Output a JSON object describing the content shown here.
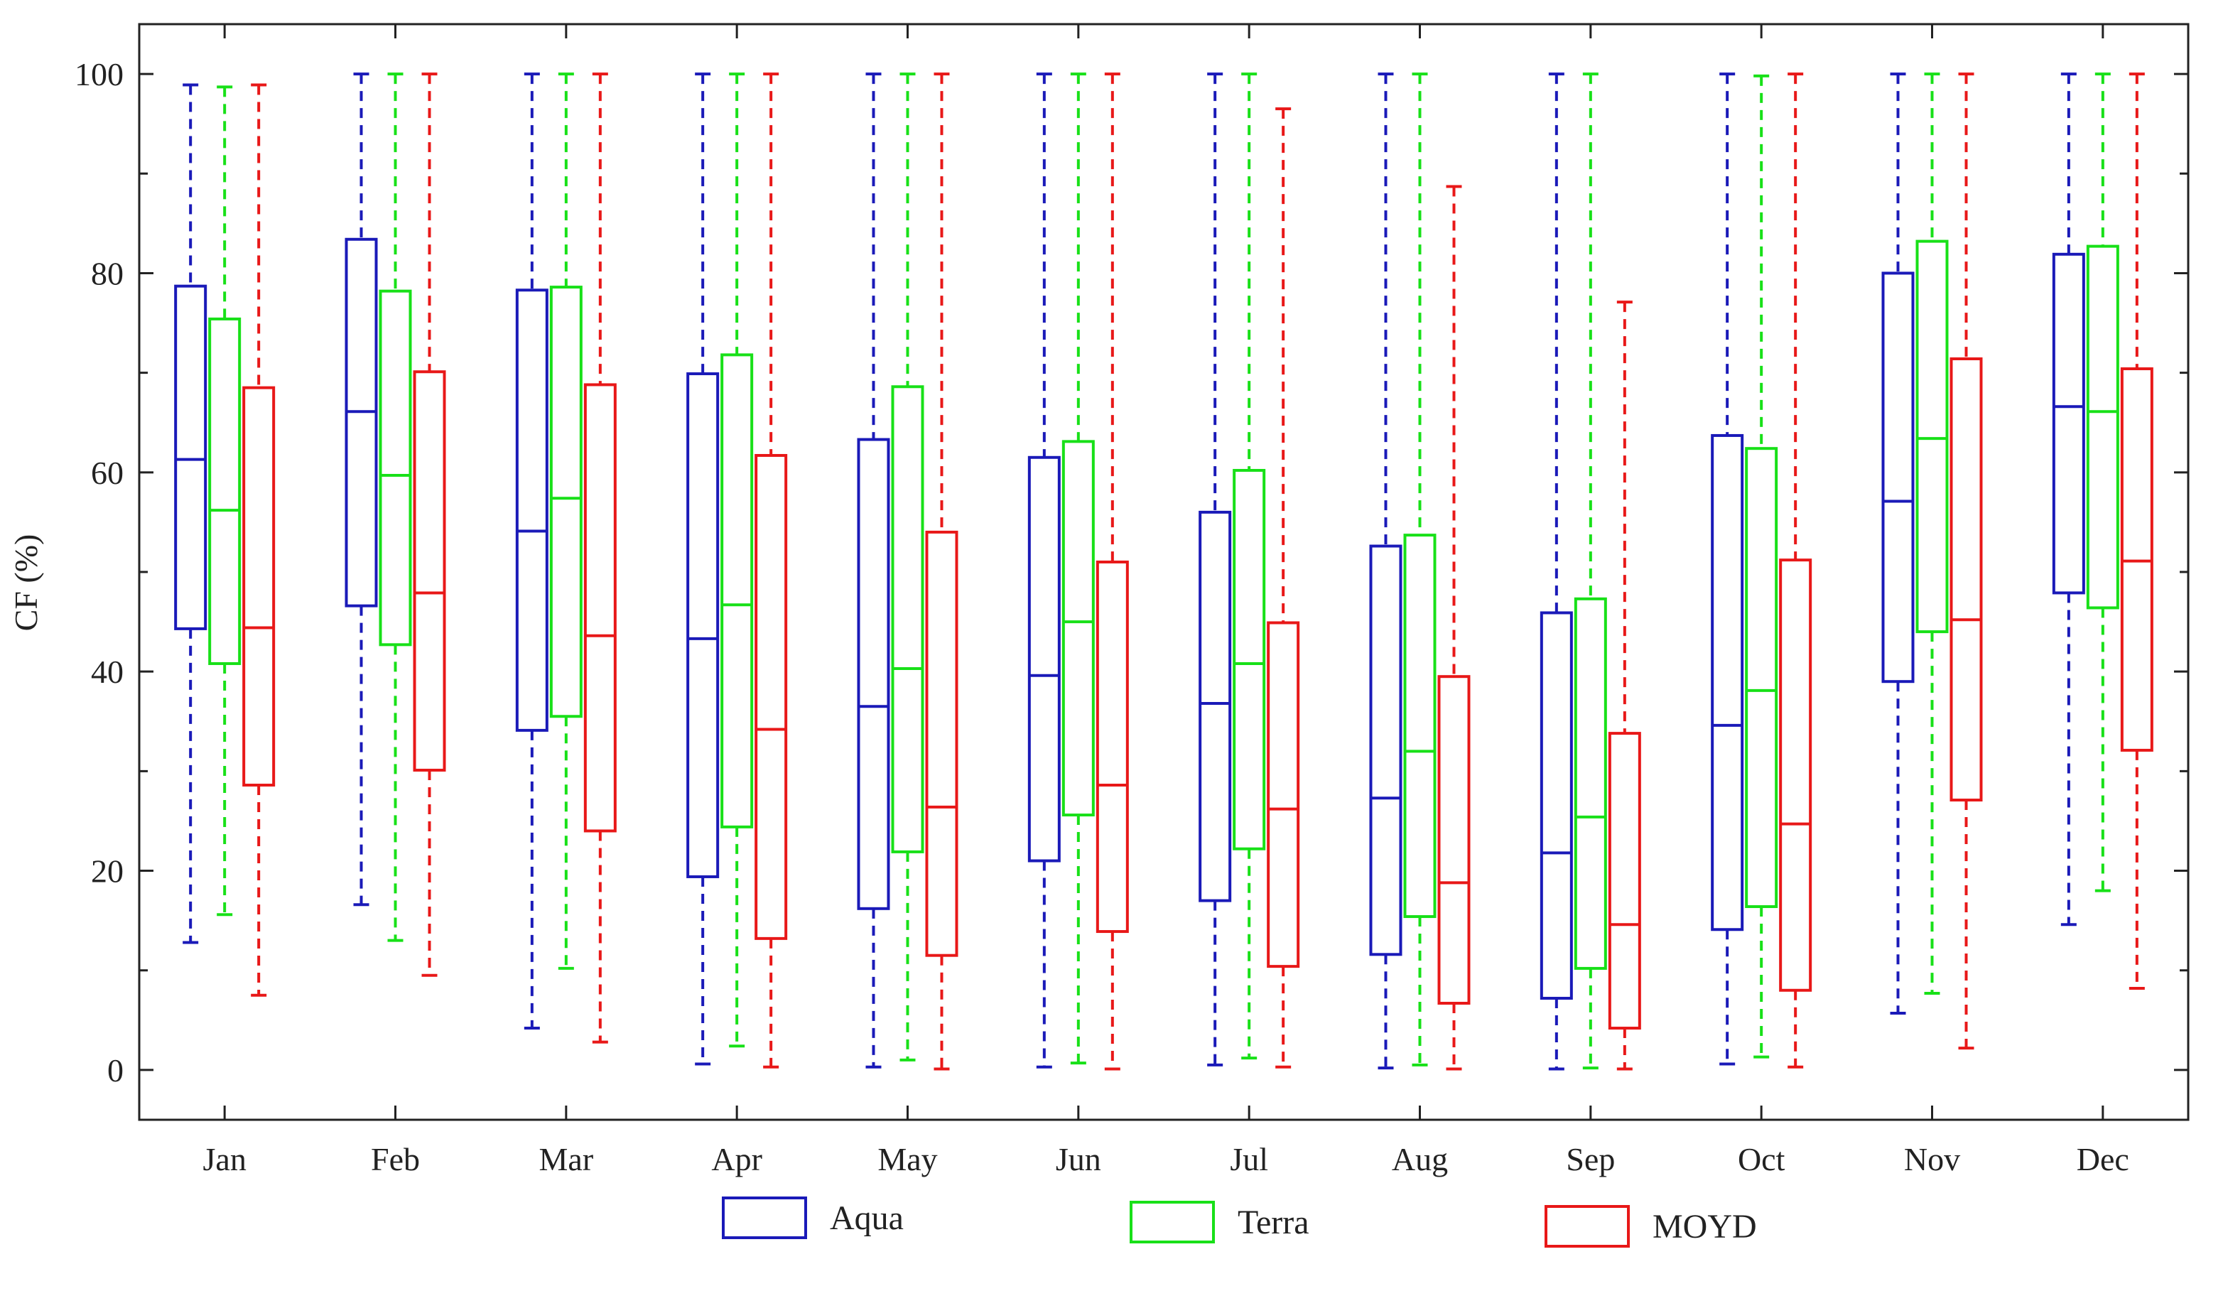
{
  "chart_data": {
    "type": "boxplot",
    "title": "",
    "xlabel": "",
    "ylabel": "CF (%)",
    "ylim": [
      -5,
      105
    ],
    "yticks": [
      0,
      20,
      40,
      60,
      80,
      100
    ],
    "grid": false,
    "legend_position": "bottom-center",
    "categories": [
      "Jan",
      "Feb",
      "Mar",
      "Apr",
      "May",
      "Jun",
      "Jul",
      "Aug",
      "Sep",
      "Oct",
      "Nov",
      "Dec"
    ],
    "series": [
      {
        "name": "Aqua",
        "color": "#1a1ab8",
        "boxes": [
          {
            "min": 12.8,
            "q1": 44.3,
            "median": 61.3,
            "q3": 78.7,
            "max": 98.9
          },
          {
            "min": 16.6,
            "q1": 46.6,
            "median": 66.1,
            "q3": 83.4,
            "max": 100
          },
          {
            "min": 4.2,
            "q1": 34.1,
            "median": 54.1,
            "q3": 78.3,
            "max": 100
          },
          {
            "min": 0.6,
            "q1": 19.4,
            "median": 43.3,
            "q3": 69.9,
            "max": 100
          },
          {
            "min": 0.3,
            "q1": 16.2,
            "median": 36.5,
            "q3": 63.3,
            "max": 100
          },
          {
            "min": 0.3,
            "q1": 21.0,
            "median": 39.6,
            "q3": 61.5,
            "max": 100
          },
          {
            "min": 0.5,
            "q1": 17.0,
            "median": 36.8,
            "q3": 56.0,
            "max": 100
          },
          {
            "min": 0.2,
            "q1": 11.6,
            "median": 27.3,
            "q3": 52.6,
            "max": 100
          },
          {
            "min": 0.1,
            "q1": 7.2,
            "median": 21.8,
            "q3": 45.9,
            "max": 100
          },
          {
            "min": 0.6,
            "q1": 14.1,
            "median": 34.6,
            "q3": 63.7,
            "max": 100
          },
          {
            "min": 5.7,
            "q1": 39.0,
            "median": 57.1,
            "q3": 80.0,
            "max": 100
          },
          {
            "min": 14.6,
            "q1": 47.9,
            "median": 66.6,
            "q3": 81.9,
            "max": 100
          }
        ]
      },
      {
        "name": "Terra",
        "color": "#18e018",
        "boxes": [
          {
            "min": 15.6,
            "q1": 40.8,
            "median": 56.2,
            "q3": 75.4,
            "max": 98.7
          },
          {
            "min": 13.0,
            "q1": 42.7,
            "median": 59.7,
            "q3": 78.2,
            "max": 100
          },
          {
            "min": 10.2,
            "q1": 35.5,
            "median": 57.4,
            "q3": 78.6,
            "max": 100
          },
          {
            "min": 2.4,
            "q1": 24.4,
            "median": 46.7,
            "q3": 71.8,
            "max": 100
          },
          {
            "min": 1.0,
            "q1": 21.9,
            "median": 40.3,
            "q3": 68.6,
            "max": 100
          },
          {
            "min": 0.7,
            "q1": 25.6,
            "median": 45.0,
            "q3": 63.1,
            "max": 100
          },
          {
            "min": 1.2,
            "q1": 22.2,
            "median": 40.8,
            "q3": 60.2,
            "max": 100
          },
          {
            "min": 0.5,
            "q1": 15.4,
            "median": 32.0,
            "q3": 53.7,
            "max": 100
          },
          {
            "min": 0.2,
            "q1": 10.2,
            "median": 25.4,
            "q3": 47.3,
            "max": 100
          },
          {
            "min": 1.3,
            "q1": 16.4,
            "median": 38.1,
            "q3": 62.4,
            "max": 99.8
          },
          {
            "min": 7.7,
            "q1": 44.0,
            "median": 63.4,
            "q3": 83.2,
            "max": 100
          },
          {
            "min": 18.0,
            "q1": 46.4,
            "median": 66.1,
            "q3": 82.7,
            "max": 100
          }
        ]
      },
      {
        "name": "MOYD",
        "color": "#e81818",
        "boxes": [
          {
            "min": 7.5,
            "q1": 28.6,
            "median": 44.4,
            "q3": 68.5,
            "max": 98.9
          },
          {
            "min": 9.5,
            "q1": 30.1,
            "median": 47.9,
            "q3": 70.1,
            "max": 100
          },
          {
            "min": 2.8,
            "q1": 24.0,
            "median": 43.6,
            "q3": 68.8,
            "max": 100
          },
          {
            "min": 0.3,
            "q1": 13.2,
            "median": 34.2,
            "q3": 61.7,
            "max": 100
          },
          {
            "min": 0.1,
            "q1": 11.5,
            "median": 26.4,
            "q3": 54.0,
            "max": 100
          },
          {
            "min": 0.1,
            "q1": 13.9,
            "median": 28.6,
            "q3": 51.0,
            "max": 100
          },
          {
            "min": 0.3,
            "q1": 10.4,
            "median": 26.2,
            "q3": 44.9,
            "max": 96.5
          },
          {
            "min": 0.1,
            "q1": 6.7,
            "median": 18.8,
            "q3": 39.5,
            "max": 88.7
          },
          {
            "min": 0.1,
            "q1": 4.2,
            "median": 14.6,
            "q3": 33.8,
            "max": 77.1
          },
          {
            "min": 0.3,
            "q1": 8.0,
            "median": 24.7,
            "q3": 51.2,
            "max": 100
          },
          {
            "min": 2.2,
            "q1": 27.1,
            "median": 45.2,
            "q3": 71.4,
            "max": 100
          },
          {
            "min": 8.2,
            "q1": 32.1,
            "median": 51.1,
            "q3": 70.4,
            "max": 100
          }
        ]
      }
    ]
  }
}
